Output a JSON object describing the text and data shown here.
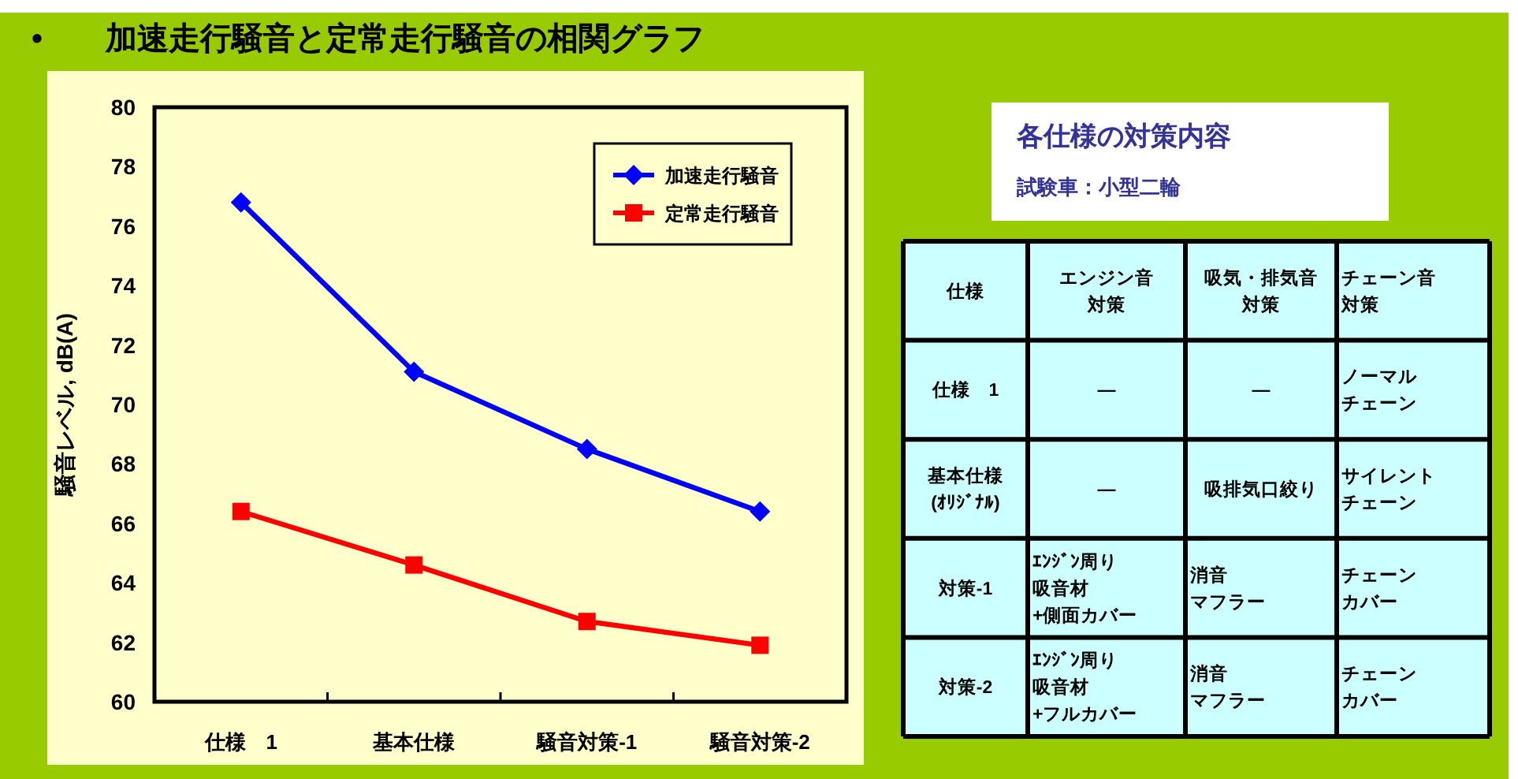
{
  "chart_data": [
    {
      "type": "line",
      "title": "•　　加速走行騒音と定常走行騒音の相関グラフ",
      "ylabel": "騒音レベル, dB(A)",
      "categories": [
        "仕様　1",
        "基本仕様",
        "騒音対策-1",
        "騒音対策-2"
      ],
      "series": [
        {
          "name": "加速走行騒音",
          "color": "#0000ff",
          "marker": "diamond",
          "values": [
            76.8,
            71.1,
            68.5,
            66.4
          ]
        },
        {
          "name": "定常走行騒音",
          "color": "#ff0000",
          "marker": "square",
          "values": [
            66.4,
            64.6,
            62.7,
            61.9
          ]
        }
      ],
      "ylim": [
        60,
        80
      ],
      "yticks": [
        60,
        62,
        64,
        66,
        68,
        70,
        72,
        74,
        76,
        78,
        80
      ],
      "legend": "top right"
    },
    {
      "type": "other",
      "title": "各仕様の対策内容",
      "subtitle": "試験車：小型二輪",
      "annotations": [
        "仕様",
        "エンジン音対策",
        "吸気・排気音対策",
        "チェーン音対策",
        "仕様　1",
        "—",
        "—",
        "ノーマルチェーン",
        "基本仕様(ｵﾘｼﾞﾅﾙ)",
        "—",
        "吸排気口絞り",
        "サイレントチェーン",
        "対策-1",
        "ｴﾝｼﾞﾝ周り吸音材+側面カバー",
        "消音マフラー",
        "チェーンカバー",
        "対策-2",
        "ｴﾝｼﾞﾝ周り吸音材+フルカバー",
        "消音マフラー",
        "チェーンカバー"
      ]
    }
  ]
}
